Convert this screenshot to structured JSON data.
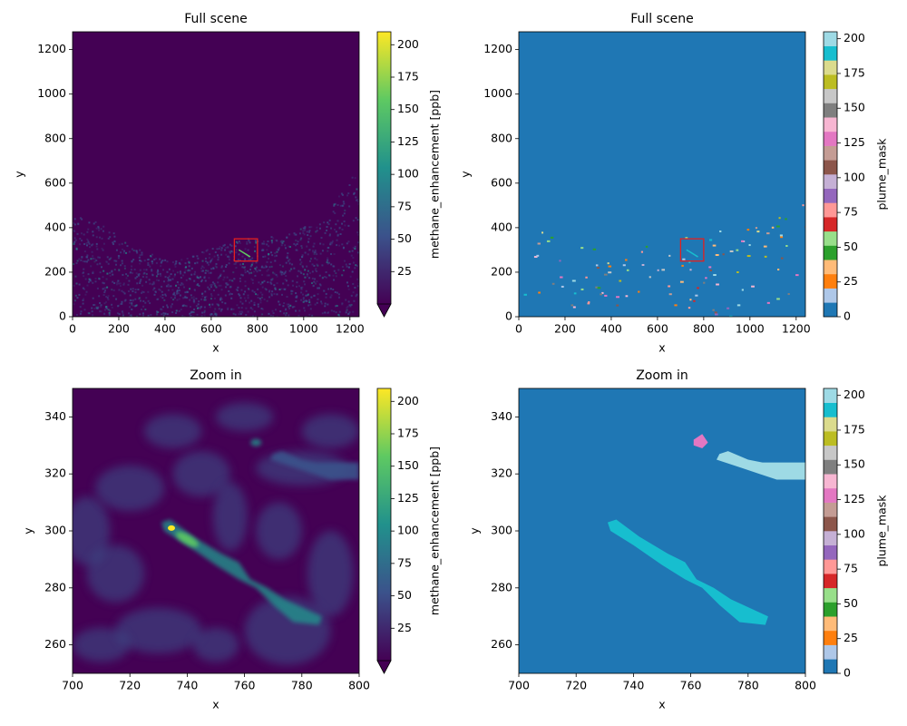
{
  "chart_data": [
    {
      "type": "heatmap",
      "title": "Full scene",
      "x_label": "x",
      "y_label": "y",
      "xlim": [
        0,
        1240
      ],
      "ylim": [
        0,
        1280
      ],
      "xticks": [
        0,
        200,
        400,
        600,
        800,
        1000,
        1200
      ],
      "yticks": [
        0,
        200,
        400,
        600,
        800,
        1000,
        1200
      ],
      "background": "#440154",
      "highlight_box": {
        "x": [
          700,
          800
        ],
        "y": [
          250,
          350
        ],
        "color": "#e3201f"
      },
      "colorbar": {
        "label": "methane_enhancement [ppb]",
        "lim": [
          0,
          210
        ],
        "ticks": [
          25,
          50,
          75,
          100,
          125,
          150,
          175,
          200
        ],
        "style": "continuous",
        "extend": "min",
        "colors": [
          "#440154",
          "#3b528b",
          "#21918c",
          "#5ec962",
          "#fde725"
        ]
      }
    },
    {
      "type": "heatmap",
      "title": "Full scene",
      "x_label": "x",
      "y_label": "y",
      "xlim": [
        0,
        1240
      ],
      "ylim": [
        0,
        1280
      ],
      "xticks": [
        0,
        200,
        400,
        600,
        800,
        1000,
        1200
      ],
      "yticks": [
        0,
        200,
        400,
        600,
        800,
        1000,
        1200
      ],
      "background": "#1f77b4",
      "highlight_box": {
        "x": [
          700,
          800
        ],
        "y": [
          250,
          350
        ],
        "color": "#e3201f"
      },
      "colorbar": {
        "label": "plume_mask",
        "lim": [
          0,
          205
        ],
        "ticks": [
          0,
          25,
          50,
          75,
          100,
          125,
          150,
          175,
          200
        ],
        "style": "discrete",
        "colors": [
          "#1f77b4",
          "#aec7e8",
          "#ff7f0e",
          "#ffbb78",
          "#2ca02c",
          "#98df8a",
          "#d62728",
          "#ff9896",
          "#9467bd",
          "#c5b0d5",
          "#8c564b",
          "#c49c94",
          "#e377c2",
          "#f7b6d2",
          "#7f7f7f",
          "#c7c7c7",
          "#bcbd22",
          "#dbdb8d",
          "#17becf",
          "#9edae5"
        ]
      }
    },
    {
      "type": "heatmap",
      "title": "Zoom in",
      "x_label": "x",
      "y_label": "y",
      "xlim": [
        700,
        800
      ],
      "ylim": [
        250,
        350
      ],
      "xticks": [
        700,
        720,
        740,
        760,
        780,
        800
      ],
      "yticks": [
        260,
        280,
        300,
        320,
        340
      ],
      "background": "#440154",
      "colorbar": {
        "label": "methane_enhancement [ppb]",
        "lim": [
          0,
          210
        ],
        "ticks": [
          25,
          50,
          75,
          100,
          125,
          150,
          175,
          200
        ],
        "style": "continuous",
        "extend": "min",
        "colors": [
          "#440154",
          "#3b528b",
          "#21918c",
          "#5ec962",
          "#fde725"
        ]
      }
    },
    {
      "type": "heatmap",
      "title": "Zoom in",
      "x_label": "x",
      "y_label": "y",
      "xlim": [
        700,
        800
      ],
      "ylim": [
        250,
        350
      ],
      "xticks": [
        700,
        720,
        740,
        760,
        780,
        800
      ],
      "yticks": [
        260,
        280,
        300,
        320,
        340
      ],
      "background": "#1f77b4",
      "colorbar": {
        "label": "plume_mask",
        "lim": [
          0,
          205
        ],
        "ticks": [
          0,
          25,
          50,
          75,
          100,
          125,
          150,
          175,
          200
        ],
        "style": "discrete",
        "colors": [
          "#1f77b4",
          "#aec7e8",
          "#ff7f0e",
          "#ffbb78",
          "#2ca02c",
          "#98df8a",
          "#d62728",
          "#ff9896",
          "#9467bd",
          "#c5b0d5",
          "#8c564b",
          "#c49c94",
          "#e377c2",
          "#f7b6d2",
          "#7f7f7f",
          "#c7c7c7",
          "#bcbd22",
          "#dbdb8d",
          "#17becf",
          "#9edae5"
        ]
      }
    }
  ]
}
